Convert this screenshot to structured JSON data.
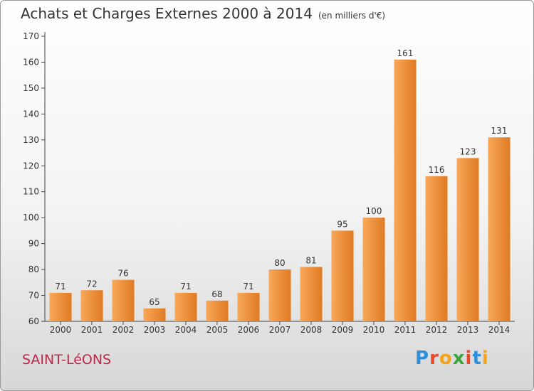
{
  "title": "Achats et Charges Externes 2000 à 2014",
  "subtitle": "(en milliers d'€)",
  "place_name": "SAINT-LéONS",
  "brand": {
    "letters": [
      "P",
      "r",
      "o",
      "x",
      "i",
      "t",
      "i"
    ],
    "colors": [
      "#2f8fd8",
      "#e8492c",
      "#f3a21a",
      "#3aa53a",
      "#e8492c",
      "#2f8fd8",
      "#f3a21a"
    ]
  },
  "colors": {
    "bar_light": "#f8a85a",
    "bar_dark": "#e07a22",
    "axis": "#444444",
    "grid": "#cccccc",
    "label": "#333333"
  },
  "chart_data": {
    "type": "bar",
    "categories": [
      "2000",
      "2001",
      "2002",
      "2003",
      "2004",
      "2005",
      "2006",
      "2007",
      "2008",
      "2009",
      "2010",
      "2011",
      "2012",
      "2013",
      "2014"
    ],
    "values": [
      71,
      72,
      76,
      65,
      71,
      68,
      71,
      80,
      81,
      95,
      100,
      161,
      116,
      123,
      131
    ],
    "ylim": [
      60,
      170
    ],
    "yticks": [
      60,
      70,
      80,
      90,
      100,
      110,
      120,
      130,
      140,
      150,
      160,
      170
    ],
    "grid": false,
    "data_labels": true
  }
}
